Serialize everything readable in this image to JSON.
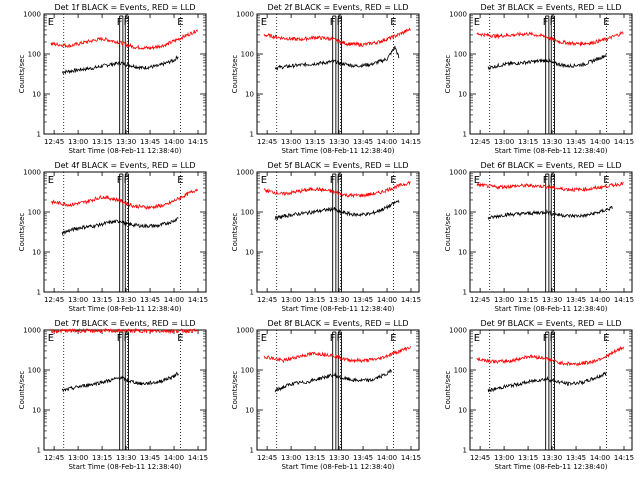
{
  "chart_data": {
    "type": "line",
    "panel_count": 9,
    "layout": "3x3 grid",
    "y_scale": "log",
    "ylim": [
      1,
      1000
    ],
    "ylabel": "Counts/sec",
    "xlabel": "Start Time (08-Feb-11 12:38:40)",
    "x_ticks": [
      "12:45",
      "13:00",
      "13:15",
      "13:30",
      "13:45",
      "14:00",
      "14:15"
    ],
    "y_ticks": [
      "1",
      "10",
      "100",
      "1000"
    ],
    "series_colors": {
      "events": "#000000",
      "lld": "#ff0000"
    },
    "grid": "dotted vertical markers",
    "panels": [
      {
        "title": "Det 1f BLACK = Events, RED = LLD",
        "markers": [
          "E",
          "F",
          "F",
          "E"
        ],
        "series": [
          {
            "name": "Events",
            "t": [
              "12:50",
              "13:00",
              "13:10",
              "13:20",
              "13:27",
              "13:30",
              "13:40",
              "13:50",
              "14:00",
              "14:03"
            ],
            "y": [
              35,
              40,
              45,
              55,
              60,
              55,
              45,
              50,
              70,
              90
            ]
          },
          {
            "name": "LLD",
            "t": [
              "12:43",
              "12:55",
              "13:05",
              "13:15",
              "13:25",
              "13:35",
              "13:45",
              "13:55",
              "14:05",
              "14:15"
            ],
            "y": [
              180,
              160,
              200,
              240,
              200,
              150,
              140,
              170,
              260,
              400
            ]
          }
        ]
      },
      {
        "title": "Det 2f BLACK = Events, RED = LLD",
        "markers": [
          "E",
          "F",
          "F",
          "E"
        ],
        "series": [
          {
            "name": "Events",
            "t": [
              "12:50",
              "13:00",
              "13:10",
              "13:20",
              "13:27",
              "13:30",
              "13:40",
              "13:50",
              "14:00",
              "14:05",
              "14:08"
            ],
            "y": [
              45,
              50,
              55,
              60,
              65,
              60,
              50,
              55,
              75,
              150,
              70
            ]
          },
          {
            "name": "LLD",
            "t": [
              "12:43",
              "12:55",
              "13:05",
              "13:15",
              "13:25",
              "13:35",
              "13:45",
              "13:55",
              "14:05",
              "14:15"
            ],
            "y": [
              300,
              250,
              230,
              260,
              240,
              180,
              170,
              200,
              280,
              420
            ]
          }
        ]
      },
      {
        "title": "Det 3f BLACK = Events, RED = LLD",
        "markers": [
          "E",
          "F",
          "F",
          "E"
        ],
        "series": [
          {
            "name": "Events",
            "t": [
              "12:50",
              "13:00",
              "13:10",
              "13:20",
              "13:27",
              "13:30",
              "13:40",
              "13:50",
              "14:00",
              "14:04"
            ],
            "y": [
              45,
              55,
              60,
              65,
              70,
              60,
              50,
              55,
              80,
              95
            ]
          },
          {
            "name": "LLD",
            "t": [
              "12:43",
              "12:55",
              "13:05",
              "13:15",
              "13:25",
              "13:35",
              "13:45",
              "13:55",
              "14:05",
              "14:15"
            ],
            "y": [
              320,
              280,
              300,
              320,
              280,
              200,
              180,
              190,
              240,
              350
            ]
          }
        ]
      },
      {
        "title": "Det 4f BLACK = Events, RED = LLD",
        "markers": [
          "E",
          "F",
          "F",
          "E"
        ],
        "series": [
          {
            "name": "Events",
            "t": [
              "12:50",
              "13:00",
              "13:10",
              "13:20",
              "13:27",
              "13:30",
              "13:40",
              "13:50",
              "14:00",
              "14:03"
            ],
            "y": [
              30,
              40,
              45,
              55,
              60,
              50,
              45,
              45,
              60,
              75
            ]
          },
          {
            "name": "LLD",
            "t": [
              "12:43",
              "12:55",
              "13:05",
              "13:15",
              "13:25",
              "13:35",
              "13:45",
              "13:55",
              "14:05",
              "14:15"
            ],
            "y": [
              180,
              150,
              180,
              240,
              200,
              140,
              130,
              150,
              240,
              380
            ]
          }
        ]
      },
      {
        "title": "Det 5f BLACK = Events, RED = LLD",
        "markers": [
          "E",
          "F",
          "F",
          "E"
        ],
        "series": [
          {
            "name": "Events",
            "t": [
              "12:50",
              "13:00",
              "13:10",
              "13:20",
              "13:27",
              "13:30",
              "13:40",
              "13:50",
              "14:00",
              "14:08"
            ],
            "y": [
              70,
              85,
              95,
              110,
              120,
              100,
              85,
              90,
              130,
              200
            ]
          },
          {
            "name": "LLD",
            "t": [
              "12:43",
              "12:55",
              "13:05",
              "13:15",
              "13:25",
              "13:35",
              "13:45",
              "13:55",
              "14:05",
              "14:15"
            ],
            "y": [
              350,
              280,
              330,
              380,
              330,
              260,
              260,
              300,
              420,
              560
            ]
          }
        ]
      },
      {
        "title": "Det 6f BLACK = Events, RED = LLD",
        "markers": [
          "E",
          "F",
          "F",
          "E"
        ],
        "series": [
          {
            "name": "Events",
            "t": [
              "12:50",
              "13:00",
              "13:10",
              "13:20",
              "13:27",
              "13:30",
              "13:40",
              "13:50",
              "14:00",
              "14:08"
            ],
            "y": [
              70,
              85,
              90,
              95,
              100,
              90,
              80,
              80,
              100,
              130
            ]
          },
          {
            "name": "LLD",
            "t": [
              "12:43",
              "12:55",
              "13:05",
              "13:15",
              "13:25",
              "13:35",
              "13:45",
              "13:55",
              "14:05",
              "14:15"
            ],
            "y": [
              480,
              420,
              440,
              460,
              440,
              380,
              360,
              380,
              450,
              520
            ]
          }
        ]
      },
      {
        "title": "Det 7f BLACK = Events, RED = LLD",
        "markers": [
          "E",
          "F",
          "F",
          "E"
        ],
        "series": [
          {
            "name": "Events",
            "t": [
              "12:50",
              "13:00",
              "13:10",
              "13:20",
              "13:27",
              "13:30",
              "13:40",
              "13:50",
              "14:00",
              "14:03"
            ],
            "y": [
              30,
              38,
              45,
              55,
              65,
              55,
              45,
              50,
              70,
              85
            ]
          },
          {
            "name": "LLD",
            "t": [
              "12:43",
              "12:55",
              "13:05",
              "13:15",
              "13:25",
              "13:35",
              "13:45",
              "13:55",
              "14:05",
              "14:15"
            ],
            "y": [
              950,
              950,
              950,
              950,
              950,
              950,
              950,
              950,
              950,
              950
            ]
          }
        ]
      },
      {
        "title": "Det 8f BLACK = Events, RED = LLD",
        "markers": [
          "E",
          "F",
          "F",
          "E"
        ],
        "series": [
          {
            "name": "Events",
            "t": [
              "12:50",
              "13:00",
              "13:10",
              "13:20",
              "13:27",
              "13:30",
              "13:40",
              "13:50",
              "14:00",
              "14:03"
            ],
            "y": [
              30,
              45,
              50,
              65,
              75,
              65,
              55,
              55,
              80,
              100
            ]
          },
          {
            "name": "LLD",
            "t": [
              "12:43",
              "12:55",
              "13:05",
              "13:15",
              "13:25",
              "13:35",
              "13:45",
              "13:55",
              "14:05",
              "14:15"
            ],
            "y": [
              220,
              170,
              220,
              260,
              240,
              180,
              170,
              190,
              270,
              380
            ]
          }
        ]
      },
      {
        "title": "Det 9f BLACK = Events, RED = LLD",
        "markers": [
          "E",
          "F",
          "F",
          "E"
        ],
        "series": [
          {
            "name": "Events",
            "t": [
              "12:50",
              "13:00",
              "13:10",
              "13:20",
              "13:27",
              "13:30",
              "13:40",
              "13:50",
              "14:00",
              "14:04"
            ],
            "y": [
              30,
              38,
              45,
              55,
              60,
              55,
              45,
              50,
              70,
              85
            ]
          },
          {
            "name": "LLD",
            "t": [
              "12:43",
              "12:55",
              "13:05",
              "13:15",
              "13:25",
              "13:35",
              "13:45",
              "13:55",
              "14:05",
              "14:15"
            ],
            "y": [
              190,
              160,
              170,
              220,
              200,
              150,
              140,
              160,
              230,
              380
            ]
          }
        ]
      }
    ]
  }
}
